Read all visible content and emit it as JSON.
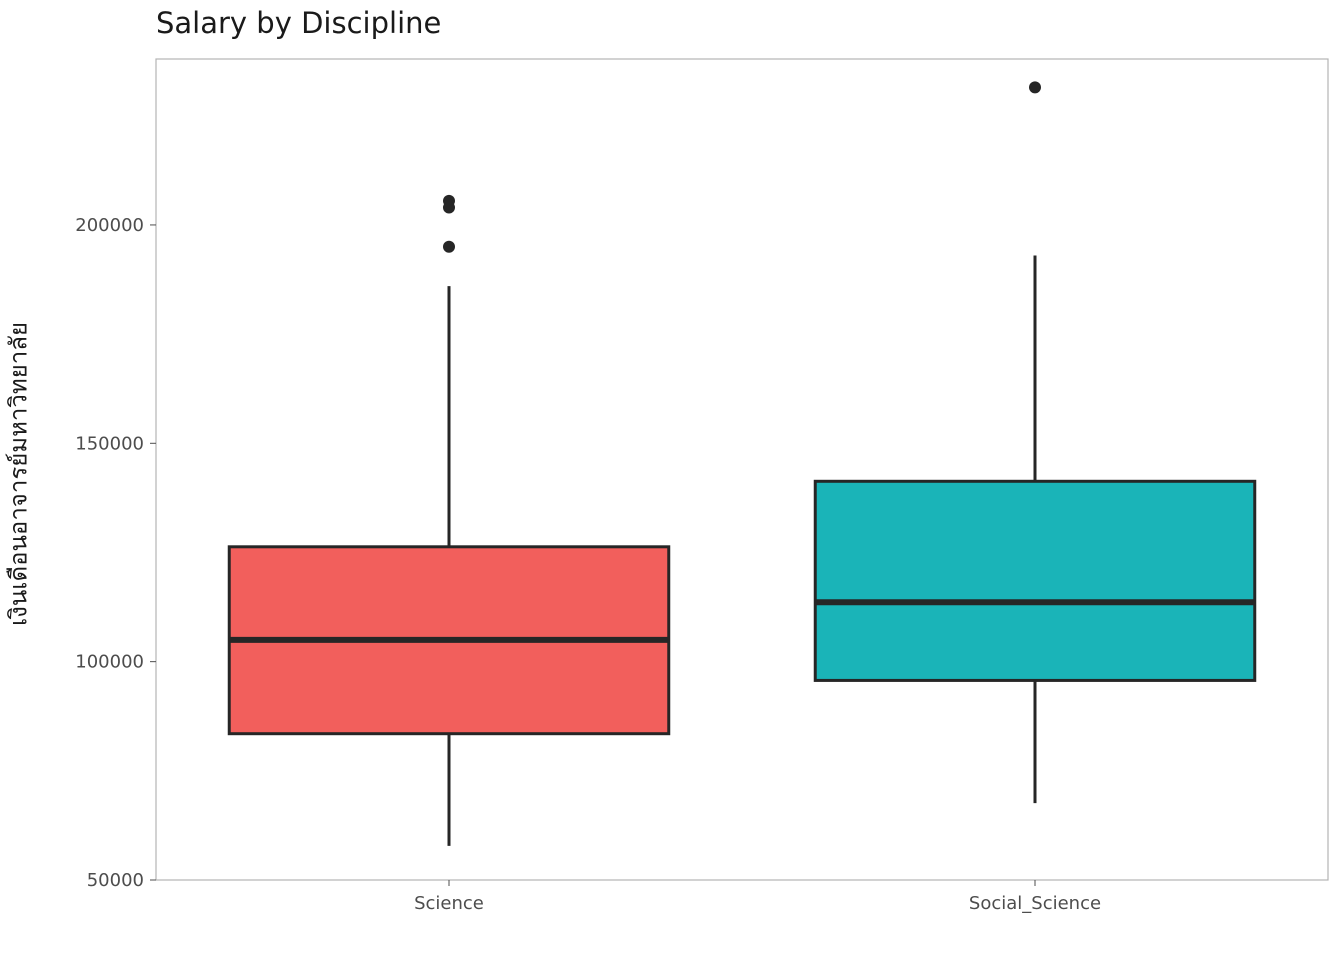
{
  "chart_data": {
    "type": "boxplot",
    "title": "Salary by Discipline",
    "xlabel": "",
    "ylabel": "เงินเดือนอาจารย์มหาวิทยาลัย",
    "categories": [
      "Science",
      "Social_Science"
    ],
    "ylim": [
      50000,
      238000
    ],
    "yticks": [
      50000,
      100000,
      150000,
      200000
    ],
    "grid": false,
    "legend": "none",
    "boxes": [
      {
        "category": "Science",
        "min": 57800,
        "q1": 83500,
        "median": 105000,
        "q3": 126300,
        "max": 186000,
        "outliers": [
          205500,
          204000,
          195000
        ],
        "color": "#F25F5C"
      },
      {
        "category": "Social_Science",
        "min": 67600,
        "q1": 95700,
        "median": 113600,
        "q3": 141300,
        "max": 193000,
        "outliers": [
          231500
        ],
        "color": "#1AB4B8"
      }
    ]
  }
}
